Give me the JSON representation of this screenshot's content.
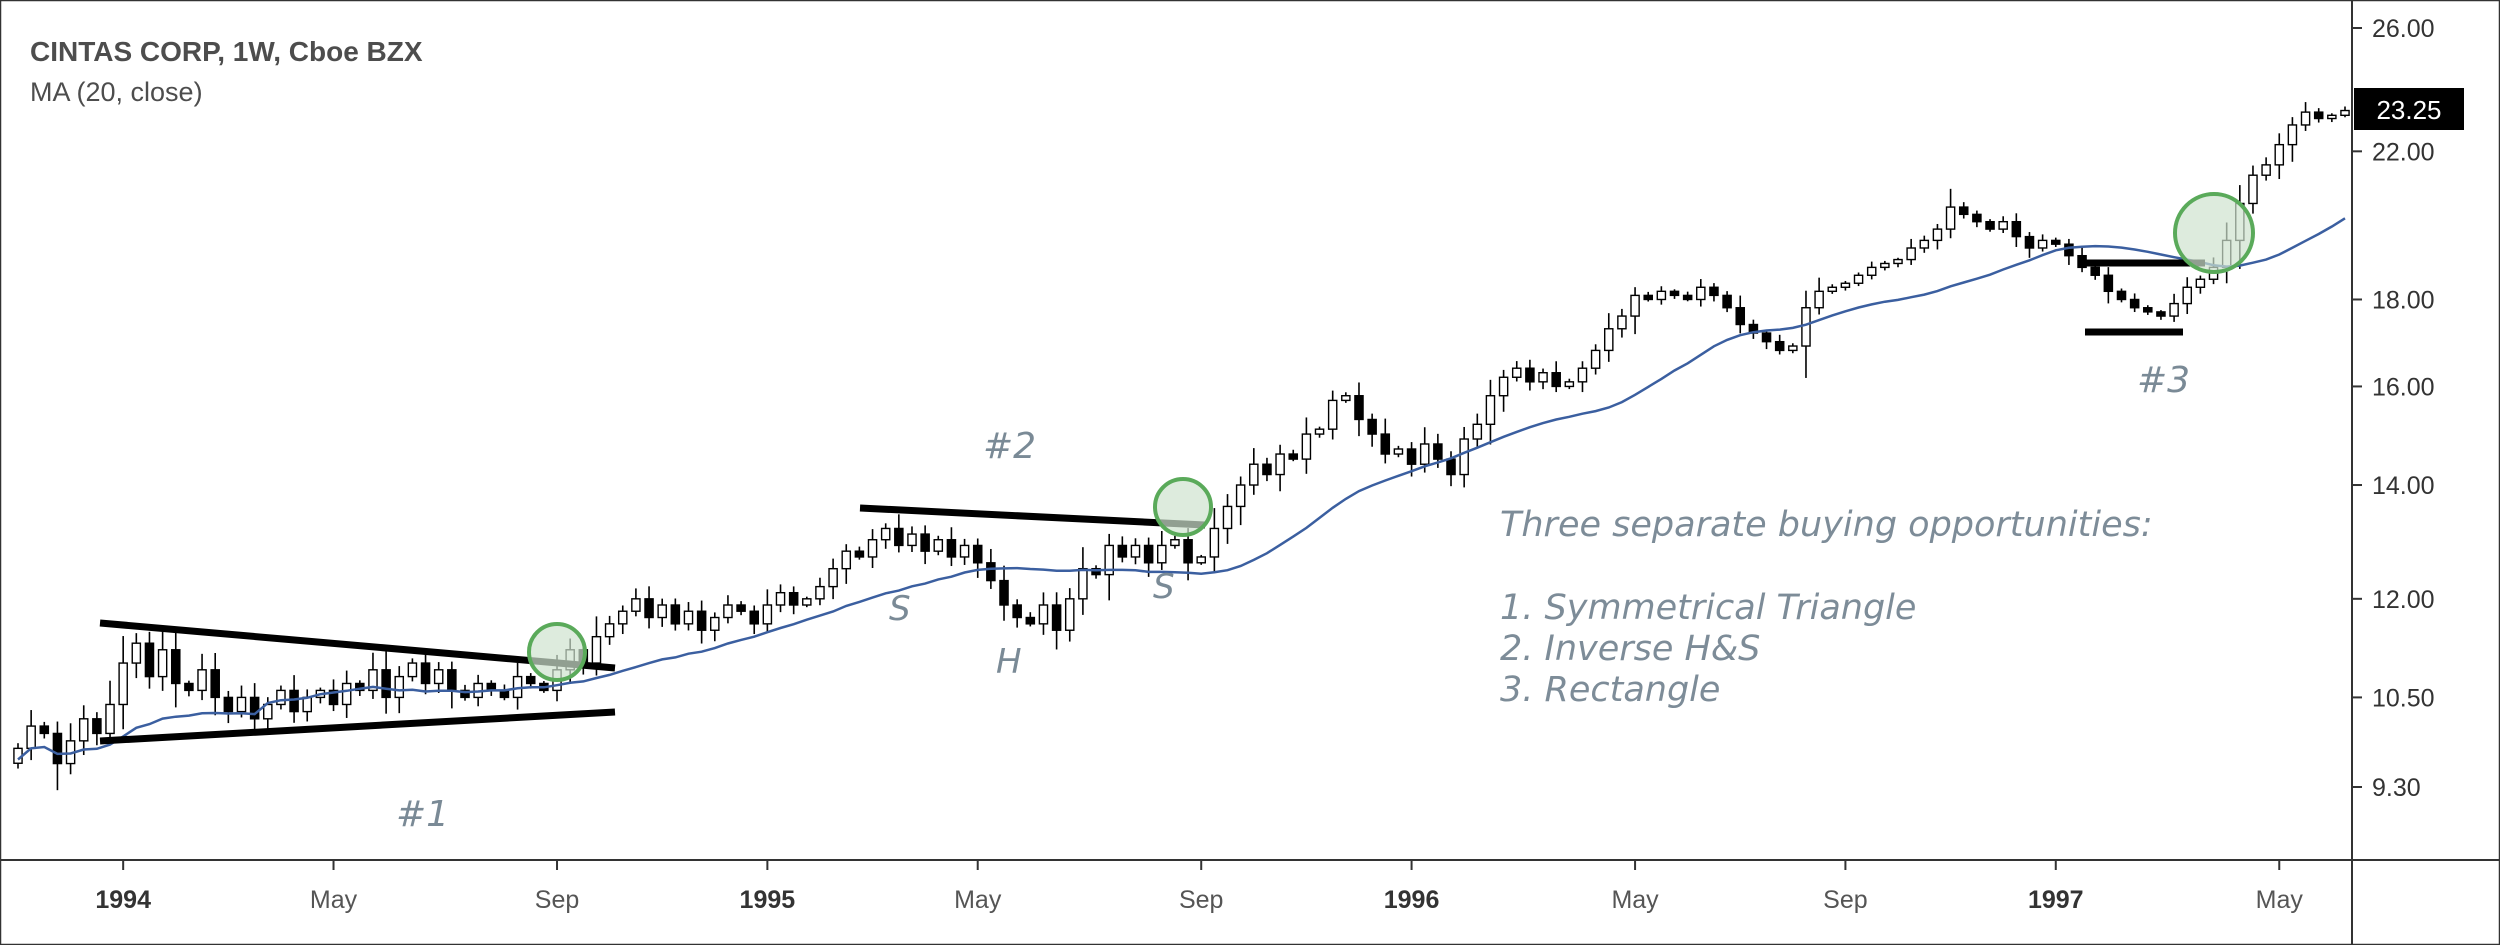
{
  "legend": {
    "title": "CINTAS CORP, 1W, Cboe BZX",
    "indicator": "MA (20, close)"
  },
  "price_badge": "23.25",
  "annotations": {
    "pattern1": "#1",
    "pattern2": "#2",
    "pattern3": "#3",
    "hs_left": "S",
    "hs_head": "H",
    "hs_right": "S",
    "note_title": "Three separate buying opportunities:",
    "note_items": [
      "1. Symmetrical Triangle",
      "2. Inverse H&S",
      "3. Rectangle"
    ]
  },
  "colors": {
    "ma_line": "#3b5fa0",
    "candle_up_fill": "#ffffff",
    "candle_down_fill": "#000000",
    "circle_fill": "#cfe3cf",
    "circle_stroke": "#5aaa5a",
    "text_note": "#7d8c98"
  },
  "chart_data": {
    "type": "candlestick",
    "title": "CINTAS CORP, 1W, Cboe BZX",
    "y_scale": "log",
    "ylim": [
      8.6,
      26.6
    ],
    "y_ticks": [
      9.3,
      10.5,
      12.0,
      14.0,
      16.0,
      18.0,
      22.0,
      26.0
    ],
    "y_tick_labels": [
      "9.30",
      "10.50",
      "12.00",
      "14.00",
      "16.00",
      "18.00",
      "22.00",
      "26.00"
    ],
    "x_tick_labels": [
      {
        "label": "1994",
        "week": 8,
        "year": true
      },
      {
        "label": "May",
        "week": 24,
        "year": false
      },
      {
        "label": "Sep",
        "week": 41,
        "year": false
      },
      {
        "label": "1995",
        "week": 57,
        "year": true
      },
      {
        "label": "May",
        "week": 73,
        "year": false
      },
      {
        "label": "Sep",
        "week": 90,
        "year": false
      },
      {
        "label": "1996",
        "week": 106,
        "year": true
      },
      {
        "label": "May",
        "week": 123,
        "year": false
      },
      {
        "label": "Sep",
        "week": 139,
        "year": false
      },
      {
        "label": "1997",
        "week": 155,
        "year": true
      },
      {
        "label": "May",
        "week": 172,
        "year": false
      }
    ],
    "last_price": 23.25,
    "close_series": [
      9.8,
      10.1,
      10.0,
      9.6,
      9.9,
      10.2,
      10.0,
      10.4,
      11.0,
      11.3,
      10.8,
      11.2,
      10.7,
      10.6,
      10.9,
      10.5,
      10.3,
      10.5,
      10.2,
      10.4,
      10.6,
      10.3,
      10.5,
      10.6,
      10.4,
      10.7,
      10.6,
      10.9,
      10.5,
      10.8,
      11.0,
      10.7,
      10.9,
      10.6,
      10.5,
      10.7,
      10.6,
      10.5,
      10.8,
      10.7,
      10.6,
      10.9,
      11.2,
      11.0,
      11.4,
      11.6,
      11.8,
      12.0,
      11.7,
      11.9,
      11.6,
      11.8,
      11.5,
      11.7,
      11.9,
      11.8,
      11.6,
      11.9,
      12.1,
      11.9,
      12.0,
      12.2,
      12.5,
      12.8,
      12.7,
      13.0,
      13.2,
      12.9,
      13.1,
      12.8,
      13.0,
      12.7,
      12.9,
      12.6,
      12.3,
      11.9,
      11.7,
      11.6,
      11.9,
      11.5,
      12.0,
      12.5,
      12.4,
      12.9,
      12.7,
      12.9,
      12.6,
      12.9,
      13.0,
      12.6,
      12.7,
      13.2,
      13.6,
      14.0,
      14.4,
      14.2,
      14.6,
      14.5,
      15.0,
      15.1,
      15.7,
      15.8,
      15.3,
      15.0,
      14.6,
      14.7,
      14.4,
      14.8,
      14.5,
      14.2,
      14.9,
      15.2,
      15.8,
      16.2,
      16.4,
      16.1,
      16.3,
      16.0,
      16.1,
      16.4,
      16.8,
      17.3,
      17.6,
      18.1,
      18.0,
      18.2,
      18.1,
      18.0,
      18.3,
      18.1,
      17.8,
      17.4,
      17.2,
      17.0,
      16.8,
      16.9,
      17.8,
      18.2,
      18.3,
      18.4,
      18.6,
      18.8,
      18.9,
      19.0,
      19.3,
      19.5,
      19.8,
      20.4,
      20.2,
      20.0,
      19.8,
      20.0,
      19.6,
      19.3,
      19.5,
      19.4,
      19.1,
      18.8,
      18.6,
      18.2,
      18.0,
      17.8,
      17.7,
      17.6,
      17.9,
      18.3,
      18.5,
      18.8,
      19.5,
      20.5,
      21.3,
      21.6,
      22.2,
      22.8,
      23.2,
      23.0,
      23.1,
      23.25
    ],
    "series": [
      {
        "name": "MA (20, close)",
        "type": "line"
      }
    ],
    "patterns": [
      {
        "label": "#1",
        "type": "Symmetrical Triangle",
        "weeks": [
          8,
          60
        ]
      },
      {
        "label": "#2",
        "type": "Inverse H&S",
        "weeks": [
          72,
          91
        ]
      },
      {
        "label": "#3",
        "type": "Rectangle",
        "weeks": [
          159,
          174
        ]
      }
    ]
  }
}
